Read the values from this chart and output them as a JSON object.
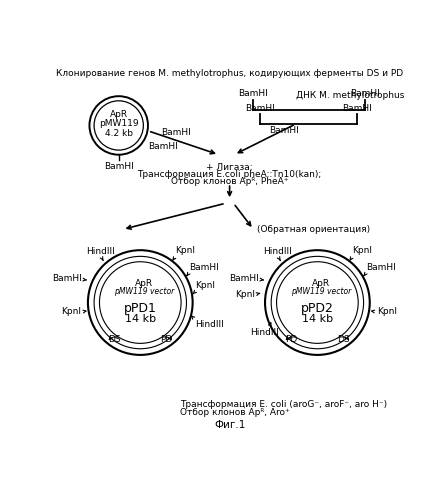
{
  "title": "Клонирование генов M. methylotrophus, кодирующих ферменты DS и PD",
  "dnk_title": "ДНК M. methylotrophus",
  "step1_line1": "+ Лигаза;",
  "step1_line2": "Трансформация E.coli pheA::Tn10(kan);",
  "step1_line3": "Отбор клонов Apᴿ, PheA⁺",
  "reverse_text": "(Обратная ориентация)",
  "bottom_text1": "Трансформация E. coli (aroG⁻, aroF⁻, aro H⁻)",
  "bottom_text2": "Отбор клонов Apᴿ, Aro⁺",
  "fig_text": "Фиг.1",
  "plasmid1_name": "pPD1",
  "plasmid1_size": "14 kb",
  "plasmid2_name": "pPD2",
  "plasmid2_size": "14 kb",
  "vector_name": "pMW119",
  "vector_size": "4.2 kb",
  "apr_label": "ApR",
  "vector_label": "pMW119 vector",
  "bg_color": "#ffffff",
  "line_color": "#000000"
}
